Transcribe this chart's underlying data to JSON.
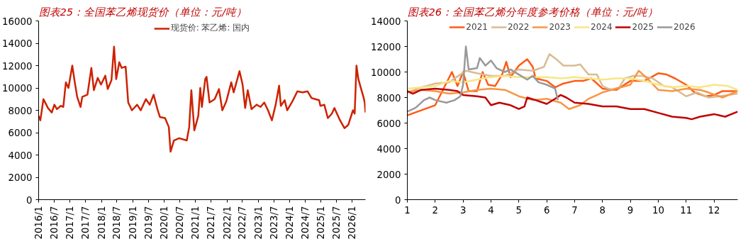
{
  "chart_data": [
    {
      "type": "line",
      "title": "图表25：全国苯乙烯现货价（单位：元/吨）",
      "legend": "top",
      "grid": false,
      "xlim": [
        "2016-01-01",
        "2026-06-03"
      ],
      "xticks": [
        {
          "value": "2016-01",
          "label": "2016/1"
        },
        {
          "value": "2016-07",
          "label": "2016/7"
        },
        {
          "value": "2017-01",
          "label": "2017/1"
        },
        {
          "value": "2017-07",
          "label": "2017/7"
        },
        {
          "value": "2018-01",
          "label": "2018/1"
        },
        {
          "value": "2018-07",
          "label": "2018/7"
        },
        {
          "value": "2019-01",
          "label": "2019/1"
        },
        {
          "value": "2019-07",
          "label": "2019/7"
        },
        {
          "value": "2020-01",
          "label": "2020/1"
        },
        {
          "value": "2020-07",
          "label": "2020/7"
        },
        {
          "value": "2021-01",
          "label": "2021/1"
        },
        {
          "value": "2021-07",
          "label": "2021/7"
        },
        {
          "value": "2022-01",
          "label": "2022/1"
        },
        {
          "value": "2022-07",
          "label": "2022/7"
        },
        {
          "value": "2023-01",
          "label": "2023/1"
        },
        {
          "value": "2023-07",
          "label": "2023/7"
        },
        {
          "value": "2024-01",
          "label": "2024/1"
        },
        {
          "value": "2024-07",
          "label": "2024/7"
        },
        {
          "value": "2025-01",
          "label": "2025/1"
        },
        {
          "value": "2025-07",
          "label": "2025/7"
        },
        {
          "value": "2026-01",
          "label": "2026/1"
        }
      ],
      "ylim": [
        0,
        16000
      ],
      "yticks": [
        0,
        2000,
        4000,
        6000,
        8000,
        10000,
        12000,
        14000,
        16000
      ],
      "x": [
        "2016-01-01",
        "2016-01-21",
        "2016-02-26",
        "2016-04-19",
        "2016-06-02",
        "2016-07-02",
        "2016-08-01",
        "2016-09-15",
        "2016-10-14",
        "2016-11-13",
        "2016-12-13",
        "2017-01-27",
        "2017-02-25",
        "2017-03-25",
        "2017-05-03",
        "2017-05-23",
        "2017-07-22",
        "2017-09-06",
        "2017-10-05",
        "2017-11-19",
        "2017-12-27",
        "2018-02-15",
        "2018-03-16",
        "2018-04-28",
        "2018-05-28",
        "2018-06-22",
        "2018-07-28",
        "2018-08-25",
        "2018-10-10",
        "2018-11-09",
        "2018-12-22",
        "2019-02-21",
        "2019-04-04",
        "2019-06-03",
        "2019-07-17",
        "2019-09-01",
        "2019-10-15",
        "2019-11-13",
        "2020-01-12",
        "2020-02-25",
        "2020-03-16",
        "2020-04-24",
        "2020-06-23",
        "2020-09-21",
        "2020-10-19",
        "2020-11-13",
        "2020-12-18",
        "2021-02-02",
        "2021-02-25",
        "2021-03-16",
        "2021-04-24",
        "2021-05-09",
        "2021-06-13",
        "2021-08-12",
        "2021-10-01",
        "2021-11-09",
        "2021-12-25",
        "2022-02-21",
        "2022-03-21",
        "2022-05-28",
        "2022-07-03",
        "2022-08-02",
        "2022-09-01",
        "2022-10-15",
        "2022-12-13",
        "2023-01-28",
        "2023-03-12",
        "2023-04-25",
        "2023-06-09",
        "2023-07-23",
        "2023-09-01",
        "2023-09-21",
        "2023-11-05",
        "2023-12-04",
        "2024-02-03",
        "2024-04-01",
        "2024-06-01",
        "2024-07-28",
        "2024-09-12",
        "2024-10-25",
        "2024-12-10",
        "2024-12-25",
        "2025-02-08",
        "2025-03-22",
        "2025-05-07",
        "2025-06-06",
        "2025-08-04",
        "2025-10-01",
        "2025-11-15",
        "2026-01-08",
        "2026-01-28",
        "2026-02-18",
        "2026-03-12",
        "2026-04-06",
        "2026-05-10",
        "2026-05-25",
        "2026-06-03"
      ],
      "series": [
        {
          "name": "现货价: 苯乙烯: 国内",
          "color": "#cc2200",
          "values": [
            7500,
            7100,
            9000,
            8200,
            7800,
            8500,
            8100,
            8400,
            8300,
            10500,
            10000,
            12000,
            10500,
            9200,
            8300,
            9200,
            9400,
            11800,
            9800,
            10900,
            10300,
            11100,
            9900,
            10700,
            13700,
            10800,
            12300,
            11800,
            11900,
            8700,
            8000,
            8500,
            8000,
            9000,
            8500,
            9400,
            8100,
            7400,
            7300,
            6500,
            4300,
            5300,
            5500,
            5300,
            6500,
            9800,
            6200,
            7500,
            10000,
            8300,
            10800,
            11000,
            8700,
            9000,
            9900,
            8000,
            8800,
            10500,
            9600,
            11500,
            10300,
            8200,
            9800,
            8100,
            8500,
            8300,
            8700,
            8000,
            7100,
            8500,
            10200,
            8400,
            8900,
            8000,
            8800,
            9700,
            9600,
            9700,
            9100,
            9000,
            8900,
            8400,
            8500,
            7300,
            7700,
            8200,
            7200,
            6400,
            6700,
            8000,
            7700,
            12000,
            10800,
            10100,
            9200,
            8700,
            7800
          ]
        }
      ]
    },
    {
      "type": "line",
      "title": "图表26：全国苯乙烯分年度参考价格（单位：元/吨）",
      "legend": "top",
      "grid": false,
      "xlim": [
        1,
        12.85
      ],
      "xticks": [
        1,
        2,
        3,
        4,
        5,
        6,
        7,
        8,
        9,
        10,
        11,
        12
      ],
      "ylim": [
        0,
        14000
      ],
      "yticks": [
        0,
        2000,
        4000,
        6000,
        8000,
        10000,
        12000,
        14000
      ],
      "series": [
        {
          "name": "2021",
          "color": "#ff5a14",
          "x": [
            1,
            2,
            2.6,
            2.8,
            3.0,
            3.2,
            3.5,
            3.7,
            3.9,
            4.15,
            4.4,
            4.55,
            4.7,
            5.0,
            5.3,
            5.5,
            5.6,
            6.0,
            6.3,
            6.6,
            7.0,
            7.3,
            7.6,
            8.0,
            8.5,
            9.0,
            9.5,
            10.0,
            10.3,
            10.6,
            11.0,
            11.3,
            11.7,
            12.0,
            12.3,
            12.85
          ],
          "values": [
            6600,
            7400,
            10000,
            8900,
            10000,
            8500,
            8500,
            10000,
            9000,
            8900,
            9800,
            10800,
            9600,
            10500,
            11000,
            10400,
            9500,
            9300,
            8800,
            9100,
            9300,
            9300,
            9500,
            8700,
            8600,
            9300,
            9300,
            9900,
            9800,
            9500,
            9000,
            8400,
            8100,
            8200,
            8500,
            8500
          ]
        },
        {
          "name": "2022",
          "color": "#d9bc93",
          "x": [
            1,
            1.5,
            2.0,
            2.5,
            2.9,
            3.1,
            3.5,
            4.0,
            4.5,
            5.0,
            5.5,
            5.9,
            6.1,
            6.4,
            6.6,
            7.0,
            7.2,
            7.5,
            7.8,
            8.0,
            8.3,
            8.6,
            8.8,
            9.1,
            9.4,
            9.8,
            10.2,
            10.5,
            11.0,
            11.4,
            11.8,
            12.2,
            12.85
          ],
          "values": [
            8400,
            8800,
            9100,
            9200,
            9800,
            10100,
            9900,
            9700,
            9700,
            10200,
            10100,
            10400,
            11400,
            10900,
            10500,
            10500,
            10600,
            9800,
            9800,
            8900,
            8600,
            8800,
            9500,
            9700,
            9700,
            9500,
            8900,
            8800,
            8100,
            8400,
            8000,
            8100,
            8300
          ]
        },
        {
          "name": "2023",
          "color": "#f79646",
          "x": [
            1,
            1.5,
            2.0,
            2.5,
            3.0,
            3.5,
            4.0,
            4.5,
            5.0,
            5.5,
            6.0,
            6.5,
            6.8,
            7.2,
            7.5,
            8.0,
            8.5,
            9.0,
            9.3,
            9.6,
            10.0,
            10.5,
            11.0,
            11.5,
            11.8,
            12.3,
            12.85
          ],
          "values": [
            8400,
            8600,
            8500,
            8300,
            8400,
            8600,
            8700,
            8600,
            8100,
            7800,
            7900,
            7600,
            7100,
            7400,
            7900,
            8400,
            8700,
            9000,
            10100,
            9500,
            8600,
            8500,
            8700,
            8600,
            8400,
            8000,
            8500
          ]
        },
        {
          "name": "2024",
          "color": "#f7e684",
          "x": [
            1,
            1.5,
            2.0,
            2.5,
            3.0,
            3.5,
            4.0,
            4.5,
            5.0,
            5.5,
            6.0,
            6.5,
            7.0,
            7.5,
            8.0,
            8.5,
            9.0,
            9.5,
            10.0,
            10.5,
            11.0,
            11.5,
            12.0,
            12.5,
            12.85
          ],
          "values": [
            8700,
            8800,
            8900,
            9300,
            9200,
            9400,
            9600,
            9700,
            9600,
            9600,
            9600,
            9500,
            9600,
            9500,
            9400,
            9500,
            9500,
            9300,
            9000,
            8800,
            8900,
            8800,
            9000,
            8900,
            8600
          ]
        },
        {
          "name": "2025",
          "color": "#c00000",
          "x": [
            1,
            1.2,
            1.5,
            2.0,
            2.5,
            2.8,
            3.0,
            3.5,
            3.8,
            4.0,
            4.3,
            4.7,
            5.0,
            5.2,
            5.3,
            5.6,
            6.0,
            6.3,
            6.5,
            6.7,
            7.0,
            7.5,
            8.0,
            8.5,
            9.0,
            9.5,
            10.0,
            10.5,
            11.0,
            11.2,
            11.5,
            12.0,
            12.4,
            12.85
          ],
          "values": [
            8500,
            8300,
            8600,
            8700,
            8600,
            8500,
            8200,
            8100,
            8000,
            7400,
            7600,
            7400,
            7100,
            7300,
            8000,
            7800,
            7500,
            7900,
            8200,
            8000,
            7600,
            7500,
            7300,
            7300,
            7100,
            7100,
            6800,
            6500,
            6400,
            6300,
            6500,
            6700,
            6500,
            6900
          ]
        },
        {
          "name": "2026",
          "color": "#999999",
          "x": [
            1,
            1.3,
            1.6,
            1.8,
            2.0,
            2.4,
            2.7,
            2.9,
            3.0,
            3.1,
            3.2,
            3.5,
            3.6,
            3.8,
            4.0,
            4.2,
            4.5,
            4.7,
            5.0,
            5.3,
            5.5,
            5.7,
            6.0,
            6.3,
            6.4
          ],
          "values": [
            6900,
            7200,
            7800,
            8000,
            7800,
            7600,
            7800,
            8100,
            9000,
            12000,
            10200,
            10300,
            11100,
            10500,
            10900,
            10300,
            10000,
            10200,
            9800,
            9400,
            9700,
            9200,
            9000,
            8700,
            7800
          ]
        }
      ]
    }
  ]
}
